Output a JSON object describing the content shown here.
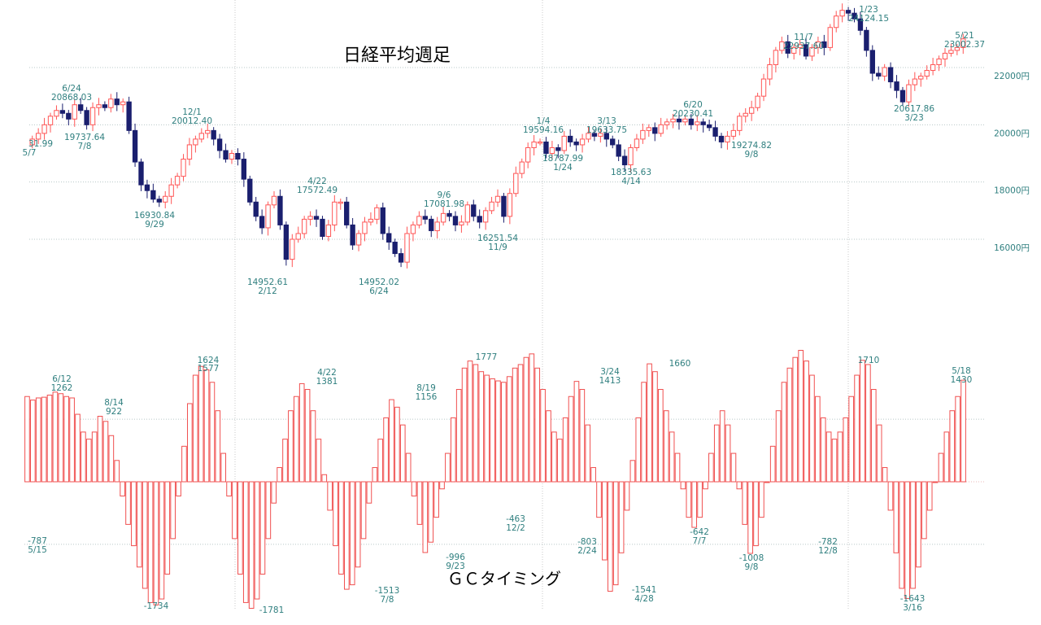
{
  "chart_data": [
    {
      "type": "candlestick",
      "title": "日経平均週足",
      "ylim": [
        15000,
        24400
      ],
      "yticks": [
        {
          "value": 16000,
          "label": "16000円"
        },
        {
          "value": 18000,
          "label": "18000円"
        },
        {
          "value": 20000,
          "label": "20000円"
        },
        {
          "value": 22000,
          "label": "22000円"
        }
      ],
      "colors": {
        "up": "#ff5555",
        "down": "#1a1f6e"
      },
      "closes": [
        19500,
        19700,
        20000,
        20300,
        20500,
        20400,
        20200,
        20700,
        20500,
        20000,
        20600,
        20700,
        20600,
        20900,
        20700,
        20800,
        19800,
        18700,
        17900,
        17700,
        17400,
        17300,
        17500,
        17900,
        18200,
        18800,
        19300,
        19500,
        19700,
        19800,
        19500,
        19100,
        18800,
        19000,
        18800,
        18100,
        17300,
        16800,
        16400,
        17200,
        17500,
        16500,
        15300,
        16000,
        16200,
        16700,
        16800,
        16700,
        16100,
        16500,
        17300,
        17300,
        16500,
        15800,
        16200,
        16600,
        16700,
        17100,
        16200,
        15900,
        15500,
        15200,
        16200,
        16500,
        16800,
        16700,
        16300,
        16600,
        16900,
        16800,
        16500,
        16600,
        17200,
        16800,
        16600,
        17000,
        17300,
        17500,
        16800,
        17600,
        18300,
        18700,
        19200,
        19400,
        19400,
        19000,
        19200,
        19100,
        19600,
        19400,
        19300,
        19500,
        19700,
        19600,
        19700,
        19500,
        19300,
        18900,
        18600,
        19200,
        19500,
        19800,
        19900,
        19700,
        20000,
        20100,
        20200,
        20100,
        20200,
        20000,
        20100,
        20000,
        19900,
        19600,
        19400,
        19600,
        19800,
        20300,
        20400,
        20600,
        21000,
        21600,
        22100,
        22600,
        22900,
        22500,
        22700,
        22800,
        22400,
        22700,
        22900,
        22700,
        23400,
        23800,
        24000,
        23900,
        23700,
        23300,
        22600,
        21800,
        21700,
        22000,
        21500,
        21200,
        20800,
        21400,
        21600,
        21700,
        21900,
        22100,
        22300,
        22500,
        22600,
        22700,
        23000
      ]
    },
    {
      "type": "bar",
      "title": "ＧＣタイミング",
      "ylim": [
        -2000,
        2000
      ],
      "values": [
        1200,
        1150,
        1180,
        1190,
        1220,
        1262,
        1240,
        1200,
        1180,
        950,
        700,
        600,
        700,
        922,
        850,
        650,
        300,
        -200,
        -600,
        -900,
        -1200,
        -1500,
        -1700,
        -1734,
        -1650,
        -1300,
        -800,
        -200,
        500,
        1100,
        1500,
        1624,
        1577,
        1400,
        1000,
        400,
        -200,
        -800,
        -1300,
        -1700,
        -1781,
        -1650,
        -1300,
        -800,
        -300,
        200,
        600,
        1000,
        1200,
        1381,
        1300,
        1000,
        600,
        100,
        -400,
        -900,
        -1300,
        -1513,
        -1450,
        -1200,
        -800,
        -300,
        200,
        600,
        900,
        1156,
        1050,
        800,
        400,
        -200,
        -600,
        -996,
        -850,
        -500,
        -100,
        400,
        900,
        1300,
        1600,
        1700,
        1650,
        1550,
        1500,
        1450,
        1420,
        1400,
        1480,
        1600,
        1650,
        1750,
        1800,
        1600,
        1300,
        1000,
        700,
        600,
        900,
        1200,
        1413,
        1300,
        800,
        200,
        -500,
        -1100,
        -1541,
        -1450,
        -1000,
        -400,
        300,
        900,
        1400,
        1660,
        1550,
        1300,
        1000,
        700,
        400,
        -100,
        -500,
        -642,
        -500,
        -100,
        400,
        800,
        1000,
        800,
        400,
        -100,
        -600,
        -1008,
        -900,
        -500,
        0,
        500,
        1000,
        1400,
        1600,
        1750,
        1850,
        1700,
        1500,
        1200,
        900,
        700,
        600,
        700,
        900,
        1200,
        1500,
        1710,
        1650,
        1300,
        800,
        200,
        -400,
        -1000,
        -1500,
        -1643,
        -1500,
        -1200,
        -800,
        -400,
        0,
        400,
        700,
        1000,
        1200,
        1430
      ],
      "gridlines": [
        880,
        0,
        -880
      ]
    }
  ],
  "annotations": {
    "price": [
      {
        "date": "6/24",
        "value": "20868.03"
      },
      {
        "date": "7/8",
        "value": "19737.64"
      },
      {
        "date": "",
        "value": "31.99"
      },
      {
        "date": "5/7",
        "value": ""
      },
      {
        "date": "12/1",
        "value": "20012.40"
      },
      {
        "date": "9/29",
        "value": "16930.84"
      },
      {
        "date": "4/22",
        "value": "17572.49"
      },
      {
        "date": "2/12",
        "value": "14952.61"
      },
      {
        "date": "6/24",
        "value": "14952.02"
      },
      {
        "date": "9/6",
        "value": "17081.98"
      },
      {
        "date": "11/9",
        "value": "16251.54"
      },
      {
        "date": "1/4",
        "value": "19594.16"
      },
      {
        "date": "1/24",
        "value": "18787.99"
      },
      {
        "date": "3/13",
        "value": "19633.75"
      },
      {
        "date": "4/14",
        "value": "18335.63"
      },
      {
        "date": "6/20",
        "value": "20230.41"
      },
      {
        "date": "9/8",
        "value": "19274.82"
      },
      {
        "date": "11/7",
        "value": "22937.60"
      },
      {
        "date": "1/23",
        "value": "24124.15"
      },
      {
        "date": "3/23",
        "value": "20617.86"
      },
      {
        "date": "5/21",
        "value": "23002.37"
      }
    ],
    "gc": [
      {
        "date": "6/12",
        "value": "1262"
      },
      {
        "date": "8/14",
        "value": "922"
      },
      {
        "date": "5/15",
        "value": "-787"
      },
      {
        "date": "",
        "value": "-1734"
      },
      {
        "date": "",
        "value": "1624"
      },
      {
        "date": "",
        "value": "1577"
      },
      {
        "date": "",
        "value": "-1781"
      },
      {
        "date": "4/22",
        "value": "1381"
      },
      {
        "date": "7/8",
        "value": "-1513"
      },
      {
        "date": "8/19",
        "value": "1156"
      },
      {
        "date": "9/23",
        "value": "-996"
      },
      {
        "date": "",
        "value": "1777"
      },
      {
        "date": "12/2",
        "value": "-463"
      },
      {
        "date": "3/24",
        "value": "1413"
      },
      {
        "date": "2/24",
        "value": "-803"
      },
      {
        "date": "4/28",
        "value": "-1541"
      },
      {
        "date": "",
        "value": "1660"
      },
      {
        "date": "7/7",
        "value": "-642"
      },
      {
        "date": "9/8",
        "value": "-1008"
      },
      {
        "date": "12/8",
        "value": "-782"
      },
      {
        "date": "",
        "value": "1710"
      },
      {
        "date": "3/16",
        "value": "-1643"
      },
      {
        "date": "5/18",
        "value": "1430"
      }
    ]
  }
}
